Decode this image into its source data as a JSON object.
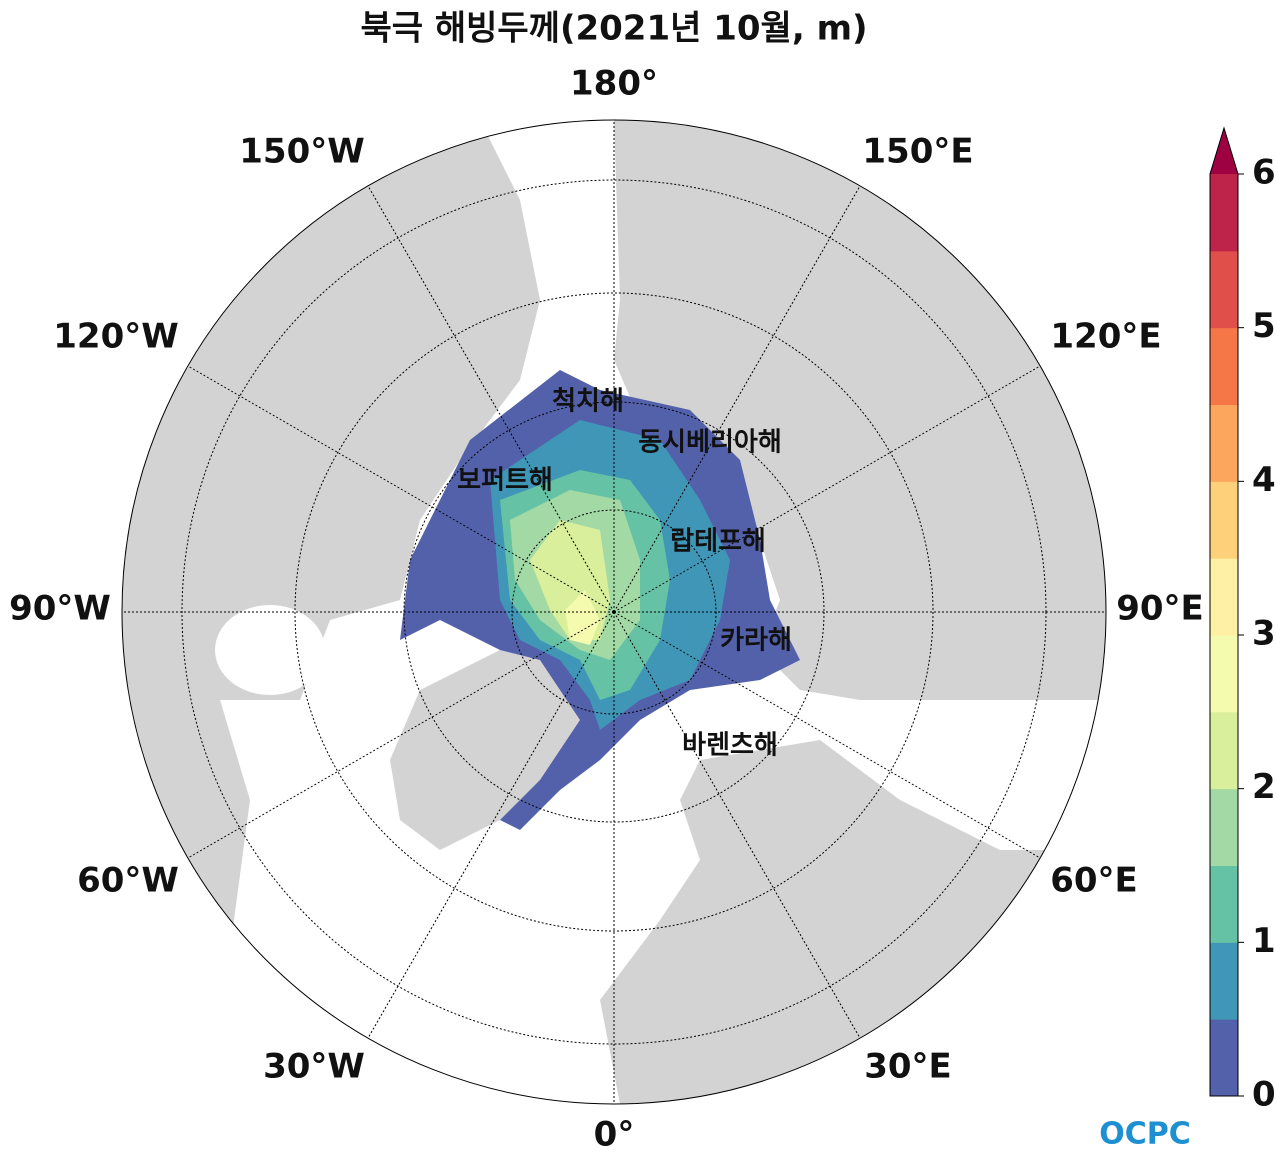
{
  "map": {
    "title": "북극 해빙두께(2021년 10월, m)",
    "lon_labels": [
      "180°",
      "150°E",
      "120°E",
      "90°E",
      "60°E",
      "30°E",
      "0°",
      "30°W",
      "60°W",
      "90°W",
      "120°W",
      "150°W"
    ],
    "sea_labels": [
      "척치해",
      "동시베리아해",
      "보퍼트해",
      "랍테프해",
      "카라해",
      "바렌츠해"
    ],
    "colorbar": {
      "range": [
        0,
        6
      ],
      "ticks": [
        0,
        1,
        2,
        3,
        4,
        5,
        6
      ],
      "colors": [
        "#5361aa",
        "#3f96b7",
        "#66c2a5",
        "#a3d9a4",
        "#d9ef9b",
        "#f4faae",
        "#fef0a5",
        "#fdd079",
        "#fca55d",
        "#f57748",
        "#e04f4a",
        "#be2449"
      ],
      "extend_color": "#9e0142"
    },
    "logo": "OCPC"
  }
}
